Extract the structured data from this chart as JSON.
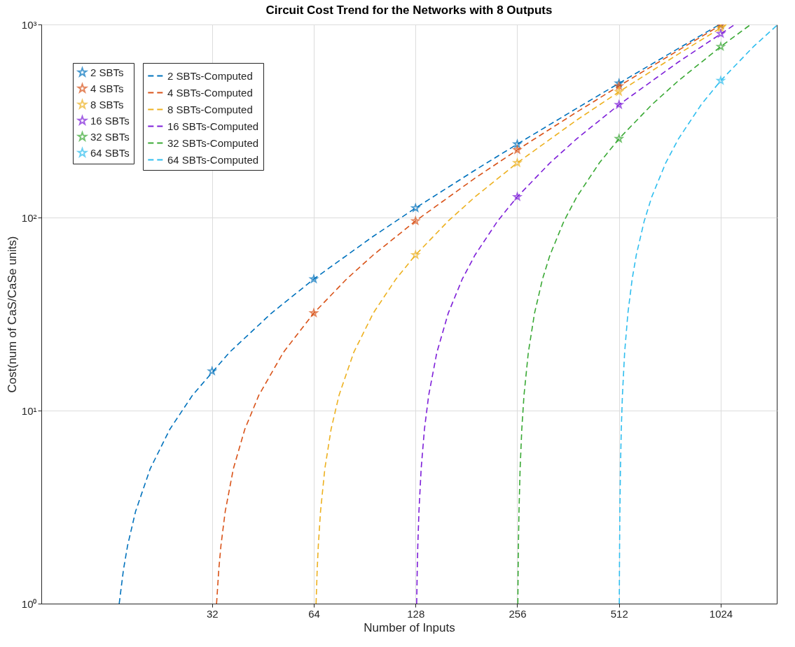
{
  "chart_data": {
    "type": "line",
    "title": "Circuit Cost Trend for the Networks with 8 Outputs",
    "xlabel": "Number of Inputs",
    "ylabel": "Cost(num of CaS/CaSe units)",
    "log": "xy",
    "grid": true,
    "legend": "top left",
    "xlim": [
      10,
      1500
    ],
    "xticks": [
      32,
      64,
      128,
      256,
      512,
      1024
    ],
    "ylim": [
      1,
      1000
    ],
    "yticks": [
      {
        "value": 1,
        "label": "10⁰"
      },
      {
        "value": 10,
        "label": "10¹"
      },
      {
        "value": 100,
        "label": "10²"
      },
      {
        "value": 1000,
        "label": "10³"
      }
    ],
    "series": [
      {
        "name": "2 SBTs",
        "type": "scatter",
        "marker": "star",
        "color": "#0072bd",
        "x": [
          32,
          64,
          128,
          256,
          512,
          1024
        ],
        "values": [
          16,
          48,
          112,
          240,
          496,
          1000
        ]
      },
      {
        "name": "2 SBTs-Computed",
        "line_style": "dashed",
        "color": "#0072bd",
        "x": [
          17,
          17.5,
          18,
          19,
          21,
          24,
          28,
          36,
          48,
          64,
          96,
          128,
          192,
          256,
          384,
          512,
          768,
          1016
        ],
        "values": [
          1,
          1.5,
          2,
          3,
          5,
          8,
          12,
          20,
          32,
          48,
          80,
          112,
          176,
          240,
          368,
          496,
          752,
          1000
        ]
      },
      {
        "name": "4 SBTs",
        "type": "scatter",
        "marker": "star",
        "color": "#d95319",
        "x": [
          64,
          128,
          256,
          512,
          1024
        ],
        "values": [
          32,
          96,
          224,
          480,
          992
        ]
      },
      {
        "name": "4 SBTs-Computed",
        "line_style": "dashed",
        "color": "#d95319",
        "x": [
          33,
          33.5,
          34,
          35,
          37,
          40,
          44,
          52,
          64,
          80,
          96,
          128,
          192,
          256,
          384,
          512,
          768,
          1032
        ],
        "values": [
          1,
          1.5,
          2,
          3,
          5,
          8,
          12,
          20,
          32,
          48,
          64,
          96,
          160,
          224,
          352,
          480,
          736,
          1000
        ]
      },
      {
        "name": "8 SBTs",
        "type": "scatter",
        "marker": "star",
        "color": "#edb120",
        "x": [
          128,
          256,
          512,
          1024
        ],
        "values": [
          64,
          192,
          448,
          960
        ]
      },
      {
        "name": "8 SBTs-Computed",
        "line_style": "dashed",
        "color": "#edb120",
        "x": [
          65,
          65.5,
          66,
          67,
          69,
          72,
          76,
          84,
          96,
          112,
          128,
          160,
          192,
          256,
          384,
          512,
          768,
          1064
        ],
        "values": [
          1,
          1.5,
          2,
          3,
          5,
          8,
          12,
          20,
          32,
          48,
          64,
          96,
          128,
          192,
          320,
          448,
          704,
          1000
        ]
      },
      {
        "name": "16 SBTs",
        "type": "scatter",
        "marker": "star",
        "color": "#7e1fd9",
        "x": [
          256,
          512,
          1024
        ],
        "values": [
          128,
          384,
          896
        ]
      },
      {
        "name": "16 SBTs-Computed",
        "line_style": "dashed",
        "color": "#7e1fd9",
        "x": [
          129,
          129.5,
          130,
          131,
          133,
          136,
          140,
          148,
          160,
          176,
          192,
          224,
          256,
          320,
          384,
          512,
          768,
          1128
        ],
        "values": [
          1,
          1.5,
          2,
          3,
          5,
          8,
          12,
          20,
          32,
          48,
          64,
          96,
          128,
          192,
          256,
          384,
          640,
          1000
        ]
      },
      {
        "name": "32 SBTs",
        "type": "scatter",
        "marker": "star",
        "color": "#3aa935",
        "x": [
          512,
          1024
        ],
        "values": [
          256,
          768
        ]
      },
      {
        "name": "32 SBTs-Computed",
        "line_style": "dashed",
        "color": "#3aa935",
        "x": [
          257,
          257.5,
          258,
          259,
          261,
          264,
          268,
          276,
          288,
          304,
          320,
          352,
          384,
          448,
          512,
          640,
          768,
          1024,
          1256
        ],
        "values": [
          1,
          1.5,
          2,
          3,
          5,
          8,
          12,
          20,
          32,
          48,
          64,
          96,
          128,
          192,
          256,
          384,
          512,
          768,
          1000
        ]
      },
      {
        "name": "64 SBTs",
        "type": "scatter",
        "marker": "star",
        "color": "#2fbeef",
        "x": [
          1024
        ],
        "values": [
          512
        ]
      },
      {
        "name": "64 SBTs-Computed",
        "line_style": "dashed",
        "color": "#2fbeef",
        "x": [
          513,
          513.5,
          514,
          515,
          517,
          520,
          524,
          532,
          544,
          560,
          576,
          608,
          640,
          704,
          768,
          896,
          1024,
          1280,
          1500
        ],
        "values": [
          1,
          1.5,
          2,
          3,
          5,
          8,
          12,
          20,
          32,
          48,
          64,
          96,
          128,
          192,
          256,
          384,
          512,
          768,
          988
        ]
      }
    ]
  }
}
